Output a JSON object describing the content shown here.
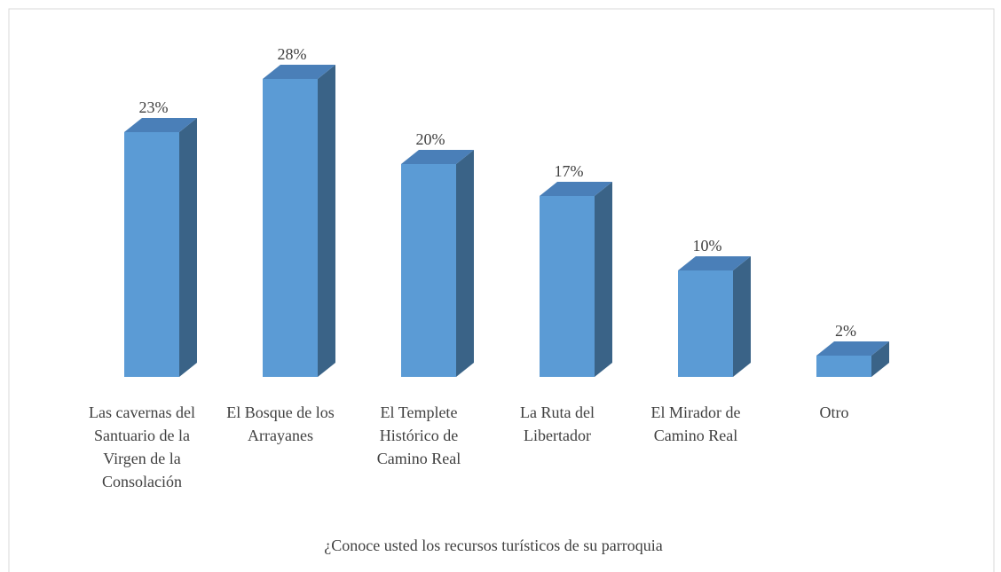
{
  "chart_data": {
    "type": "bar3d",
    "categories": [
      "Las cavernas del Santuario de la Virgen de la Consolación",
      "El Bosque de los Arrayanes",
      "El Templete Histórico de Camino Real",
      "La Ruta del Libertador",
      "El Mirador de Camino Real",
      "Otro"
    ],
    "values": [
      23,
      28,
      20,
      17,
      10,
      2
    ],
    "value_labels": [
      "23%",
      "28%",
      "20%",
      "17%",
      "10%",
      "2%"
    ],
    "color": "#5b9bd5",
    "ylim": [
      0,
      30
    ],
    "xlabel": "¿Conoce usted los recursos turísticos de su parroquia"
  }
}
